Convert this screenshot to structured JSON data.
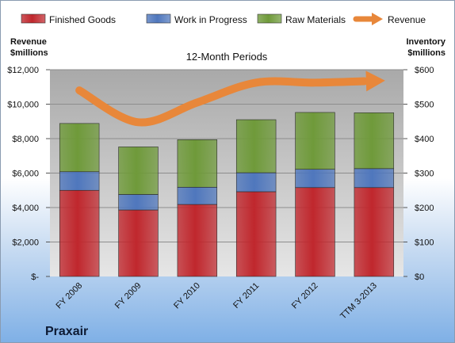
{
  "chart_data": {
    "type": "bar",
    "subtitle": "12-Month Periods",
    "company": "Praxair",
    "categories": [
      "FY 2008",
      "FY 2009",
      "FY 2010",
      "FY 2011",
      "FY 2012",
      "TTM 3-2013"
    ],
    "series": [
      {
        "name": "Finished Goods",
        "axis": "right",
        "stack": true,
        "color": "#c0272d",
        "values": [
          250,
          193,
          209,
          246,
          258,
          258
        ]
      },
      {
        "name": "Work in Progress",
        "axis": "right",
        "stack": true,
        "color": "#4f77bd",
        "values": [
          54,
          45,
          50,
          55,
          53,
          55
        ]
      },
      {
        "name": "Raw Materials",
        "axis": "right",
        "stack": true,
        "color": "#6f9a3a",
        "values": [
          140,
          138,
          138,
          154,
          165,
          162
        ]
      },
      {
        "name": "Revenue",
        "axis": "left",
        "type": "line",
        "color": "#e8873a",
        "values": [
          10800,
          8950,
          10100,
          11250,
          11250,
          11350
        ]
      }
    ],
    "left_axis": {
      "title_line1": "Revenue",
      "title_line2": "$millions",
      "ylim": [
        0,
        12000
      ],
      "ticks": [
        0,
        2000,
        4000,
        6000,
        8000,
        10000,
        12000
      ],
      "tick_labels": [
        "$-",
        "$2,000",
        "$4,000",
        "$6,000",
        "$8,000",
        "$10,000",
        "$12,000"
      ]
    },
    "right_axis": {
      "title_line1": "Inventory",
      "title_line2": "$millions",
      "ylim": [
        0,
        600
      ],
      "ticks": [
        0,
        100,
        200,
        300,
        400,
        500,
        600
      ],
      "tick_labels": [
        "$0",
        "$100",
        "$200",
        "$300",
        "$400",
        "$500",
        "$600"
      ]
    },
    "legend_position": "top",
    "grid": true
  }
}
